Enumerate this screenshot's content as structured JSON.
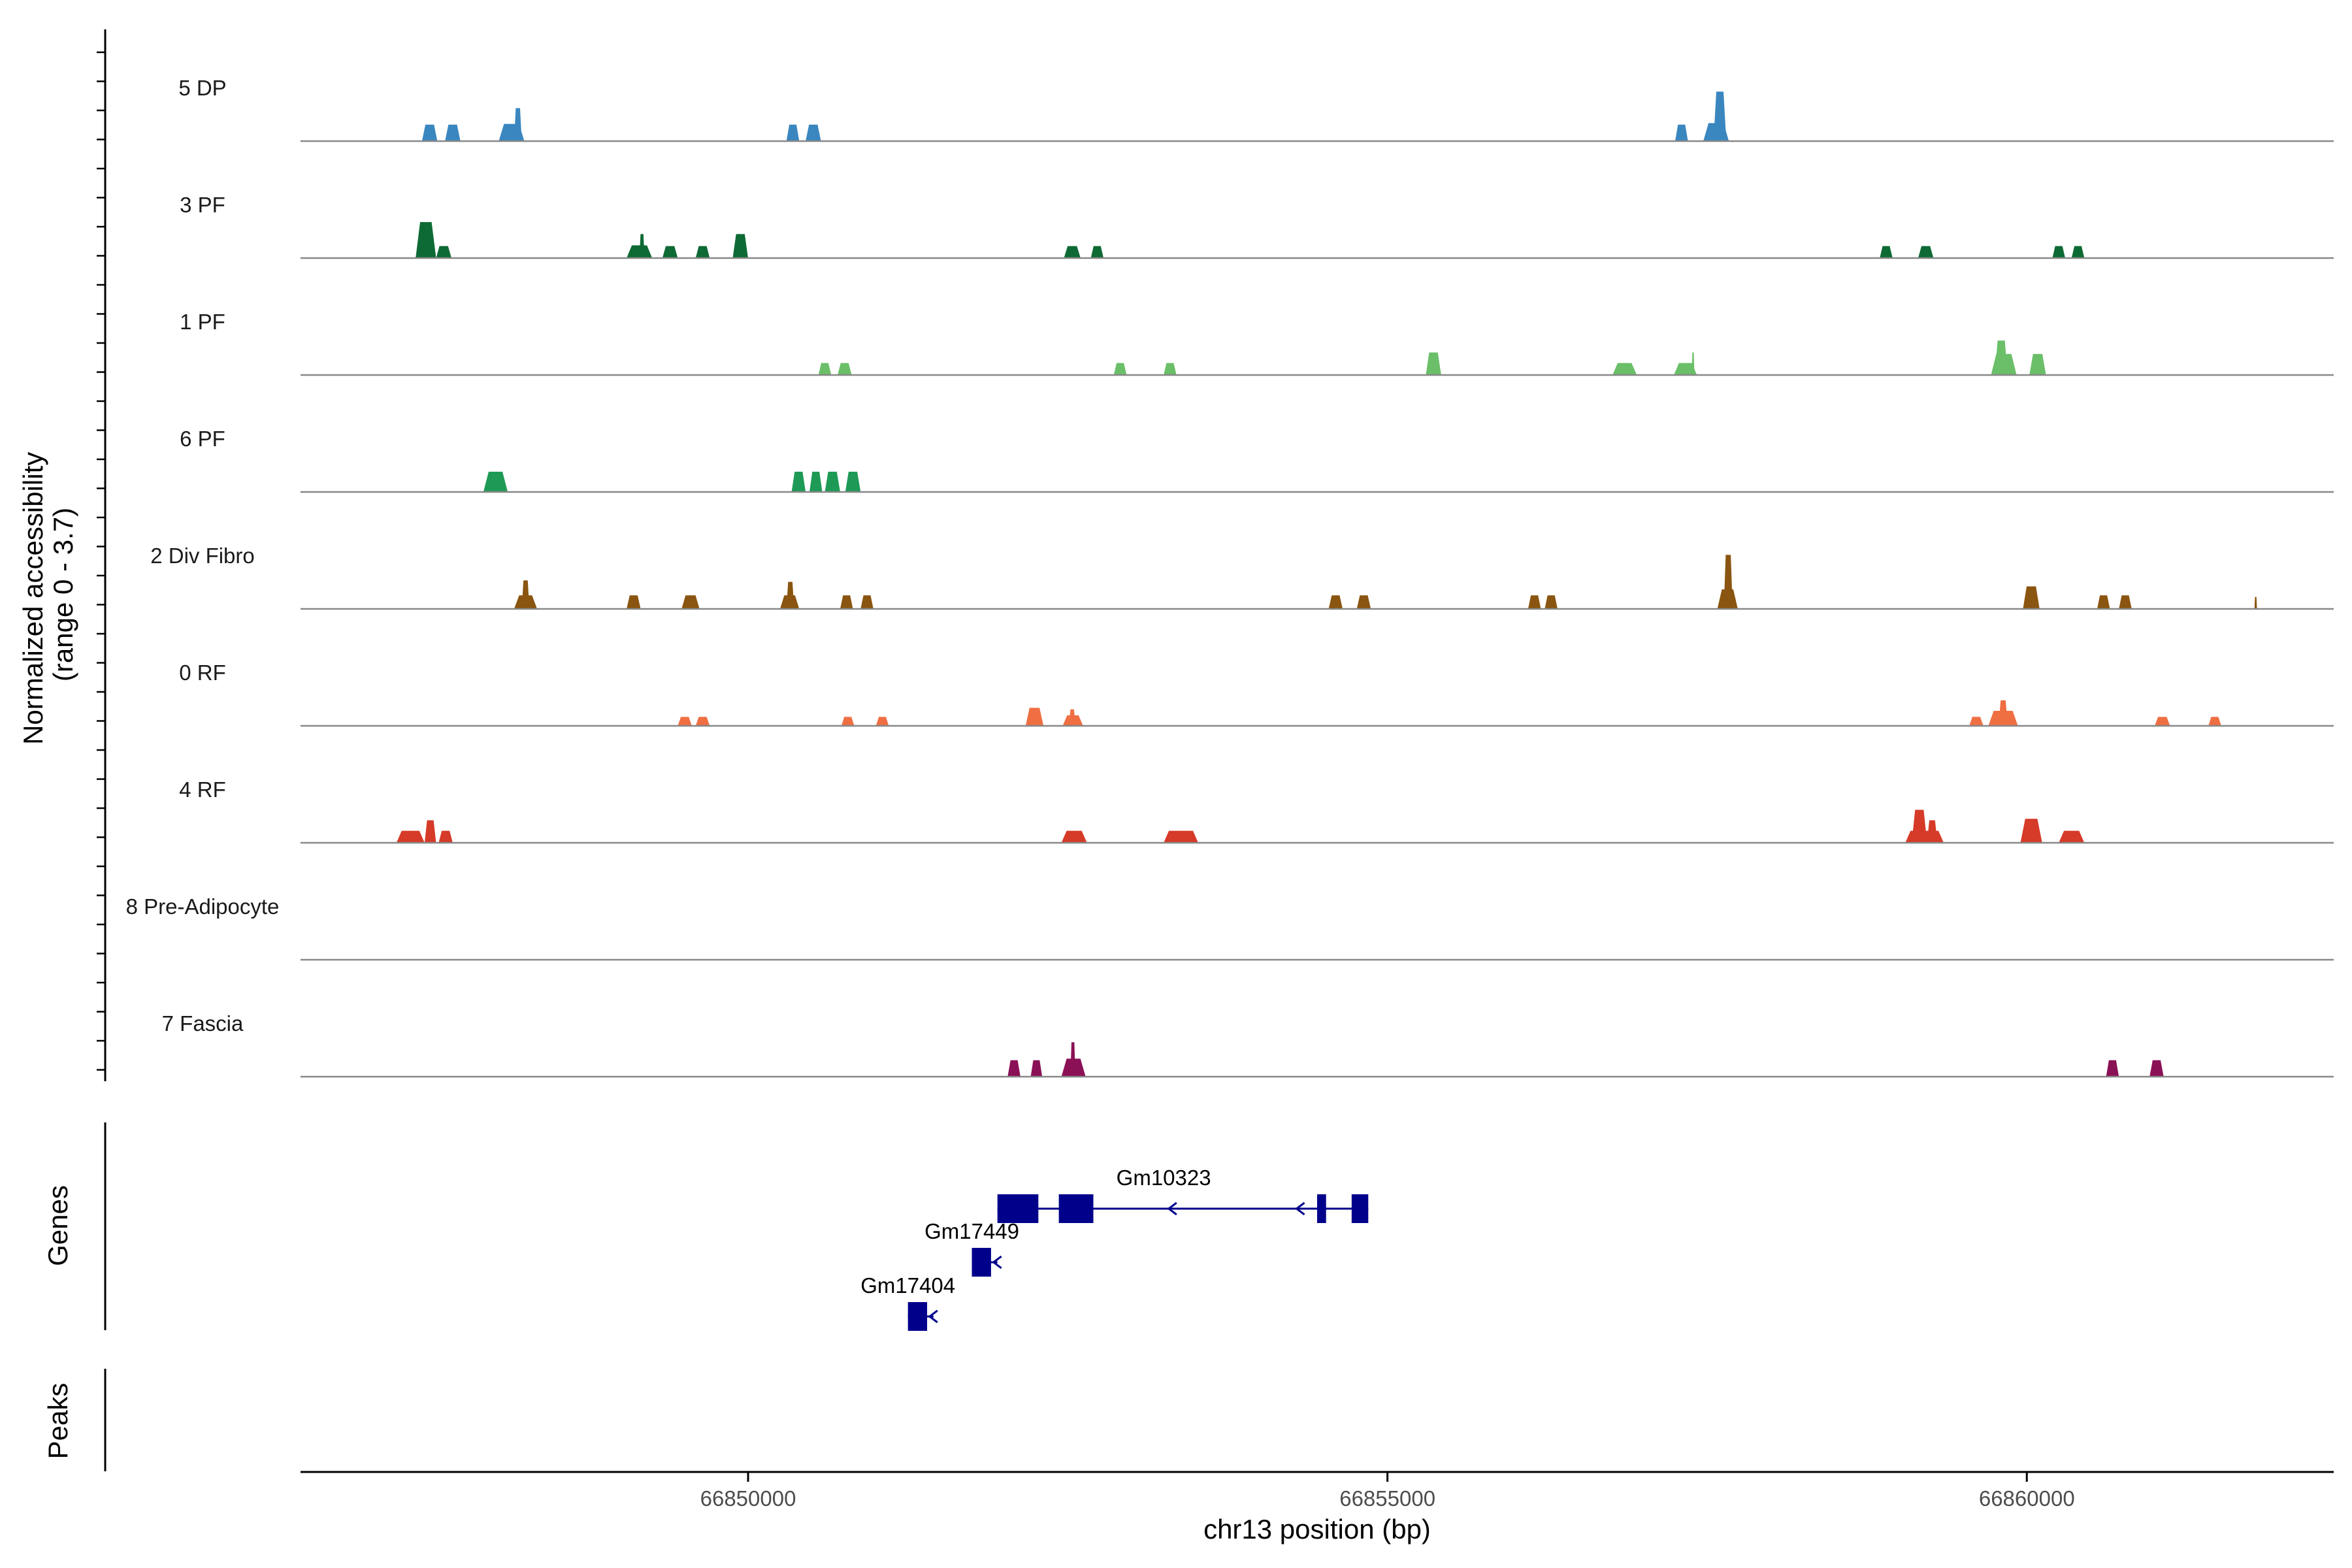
{
  "chart_data": {
    "type": "area",
    "title": "",
    "ylabel_line1": "Normalized accessibility",
    "ylabel_line2": "(range 0 - 3.7)",
    "xlabel": "chr13 position (bp)",
    "genes_label": "Genes",
    "peaks_label": "Peaks",
    "xlim": [
      66846500,
      66862400
    ],
    "ylim": [
      0,
      3.7
    ],
    "x_ticks": [
      {
        "value": 66850000,
        "label": "66850000"
      },
      {
        "value": 66855000,
        "label": "66855000"
      },
      {
        "value": 66860000,
        "label": "66860000"
      }
    ],
    "series": [
      {
        "name": "5 DP",
        "color": "#3a87c0",
        "peaks": [
          [
            66847450,
            66847570,
            1.1
          ],
          [
            66847630,
            66847750,
            1.1
          ],
          [
            66848050,
            66848250,
            1.15
          ],
          [
            66848170,
            66848230,
            2.2
          ],
          [
            66850300,
            66850400,
            1.1
          ],
          [
            66850450,
            66850570,
            1.1
          ],
          [
            66857250,
            66857350,
            1.1
          ],
          [
            66857470,
            66857670,
            1.2
          ],
          [
            66857550,
            66857650,
            3.3
          ]
        ]
      },
      {
        "name": "3 PF",
        "color": "#0e6a34",
        "peaks": [
          [
            66847400,
            66847560,
            2.4
          ],
          [
            66847560,
            66847680,
            0.8
          ],
          [
            66849050,
            66849250,
            0.85
          ],
          [
            66849150,
            66849190,
            1.6
          ],
          [
            66849330,
            66849450,
            0.8
          ],
          [
            66849590,
            66849700,
            0.8
          ],
          [
            66849880,
            66850000,
            1.6
          ],
          [
            66852470,
            66852600,
            0.8
          ],
          [
            66852680,
            66852780,
            0.8
          ],
          [
            66858850,
            66858950,
            0.8
          ],
          [
            66859150,
            66859270,
            0.8
          ],
          [
            66860200,
            66860300,
            0.8
          ],
          [
            66860350,
            66860450,
            0.8
          ]
        ]
      },
      {
        "name": "1 PF",
        "color": "#6abf68",
        "peaks": [
          [
            66850550,
            66850650,
            0.8
          ],
          [
            66850700,
            66850810,
            0.8
          ],
          [
            66852860,
            66852960,
            0.8
          ],
          [
            66853250,
            66853350,
            0.8
          ],
          [
            66855300,
            66855420,
            1.5
          ],
          [
            66856760,
            66856950,
            0.8
          ],
          [
            66857240,
            66857420,
            0.8
          ],
          [
            66857380,
            66857400,
            1.5
          ],
          [
            66859720,
            66859920,
            1.4
          ],
          [
            66859750,
            66859850,
            2.3
          ],
          [
            66860020,
            66860150,
            1.4
          ]
        ]
      },
      {
        "name": "6 PF",
        "color": "#1e9a56",
        "peaks": [
          [
            66847930,
            66848120,
            1.35
          ],
          [
            66850340,
            66850450,
            1.35
          ],
          [
            66850480,
            66850580,
            1.35
          ],
          [
            66850600,
            66850720,
            1.35
          ],
          [
            66850760,
            66850880,
            1.35
          ]
        ]
      },
      {
        "name": "2 Div Fibro",
        "color": "#8a5510",
        "peaks": [
          [
            66848170,
            66848350,
            0.9
          ],
          [
            66848230,
            66848290,
            1.9
          ],
          [
            66849050,
            66849160,
            0.9
          ],
          [
            66849480,
            66849620,
            0.9
          ],
          [
            66850250,
            66850400,
            0.9
          ],
          [
            66850300,
            66850360,
            1.8
          ],
          [
            66850720,
            66850820,
            0.9
          ],
          [
            66850880,
            66850980,
            0.9
          ],
          [
            66854540,
            66854650,
            0.9
          ],
          [
            66854760,
            66854870,
            0.9
          ],
          [
            66856100,
            66856200,
            0.9
          ],
          [
            66856230,
            66856330,
            0.9
          ],
          [
            66857580,
            66857740,
            1.3
          ],
          [
            66857630,
            66857700,
            3.6
          ],
          [
            66859970,
            66860100,
            1.5
          ],
          [
            66860550,
            66860650,
            0.9
          ],
          [
            66860720,
            66860820,
            0.9
          ],
          [
            66861780,
            66861800,
            0.8
          ]
        ]
      },
      {
        "name": "0 RF",
        "color": "#ef6f43",
        "peaks": [
          [
            66849450,
            66849560,
            0.6
          ],
          [
            66849590,
            66849700,
            0.6
          ],
          [
            66850730,
            66850830,
            0.6
          ],
          [
            66851000,
            66851100,
            0.6
          ],
          [
            66852170,
            66852310,
            1.2
          ],
          [
            66852460,
            66852620,
            0.7
          ],
          [
            66852510,
            66852560,
            1.1
          ],
          [
            66859550,
            66859660,
            0.6
          ],
          [
            66859700,
            66859930,
            1.0
          ],
          [
            66859780,
            66859850,
            1.7
          ],
          [
            66861000,
            66861120,
            0.6
          ],
          [
            66861420,
            66861520,
            0.6
          ]
        ]
      },
      {
        "name": "4 RF",
        "color": "#d63a28",
        "peaks": [
          [
            66847250,
            66847470,
            0.8
          ],
          [
            66847470,
            66847560,
            1.5
          ],
          [
            66847580,
            66847690,
            0.8
          ],
          [
            66852450,
            66852650,
            0.8
          ],
          [
            66853250,
            66853520,
            0.8
          ],
          [
            66859050,
            66859350,
            0.8
          ],
          [
            66859100,
            66859220,
            2.2
          ],
          [
            66859220,
            66859300,
            1.5
          ],
          [
            66859950,
            66860120,
            1.6
          ],
          [
            66860250,
            66860450,
            0.8
          ]
        ]
      },
      {
        "name": "8 Pre-Adipocyte",
        "color": "#cc4c02",
        "peaks": []
      },
      {
        "name": "7 Fascia",
        "color": "#8b1156",
        "peaks": [
          [
            66852030,
            66852130,
            1.1
          ],
          [
            66852210,
            66852300,
            1.1
          ],
          [
            66852450,
            66852640,
            1.2
          ],
          [
            66852520,
            66852560,
            2.3
          ],
          [
            66860620,
            66860720,
            1.1
          ],
          [
            66860960,
            66861070,
            1.1
          ]
        ]
      }
    ],
    "genes": [
      {
        "name": "Gm10323",
        "strand": "-",
        "row": 0,
        "start": 66851950,
        "end": 66854850,
        "exons": [
          [
            66851950,
            66852270
          ],
          [
            66852430,
            66852700
          ],
          [
            66854450,
            66854520
          ],
          [
            66854720,
            66854850
          ]
        ],
        "arrows": [
          66853320,
          66854320
        ]
      },
      {
        "name": "Gm17449",
        "strand": "-",
        "row": 1,
        "start": 66851750,
        "end": 66851950,
        "exons": [
          [
            66851750,
            66851900
          ]
        ],
        "arrows": [
          66851950
        ]
      },
      {
        "name": "Gm17404",
        "strand": "-",
        "row": 2,
        "start": 66851250,
        "end": 66851450,
        "exons": [
          [
            66851250,
            66851400
          ]
        ],
        "arrows": [
          66851450
        ]
      }
    ],
    "colors": {
      "gene": "#00008b",
      "baseline": "#888888",
      "axis": "#000000"
    }
  }
}
